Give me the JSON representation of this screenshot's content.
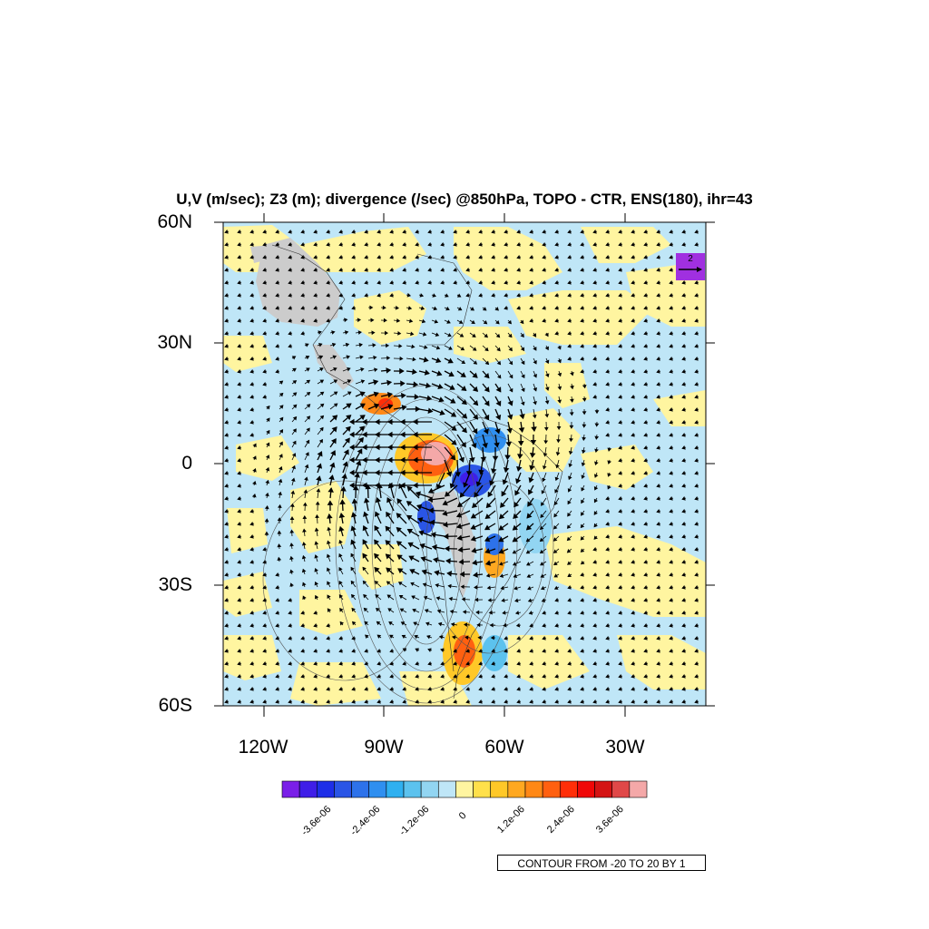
{
  "title": "U,V (m/sec); Z3 (m); divergence (/sec) @850hPa, TOPO - CTR, ENS(180), ihr=43",
  "lat_labels": [
    "60N",
    "30N",
    "0",
    "30S",
    "60S"
  ],
  "lon_labels": [
    "120W",
    "90W",
    "60W",
    "30W"
  ],
  "colorbar": {
    "labels": [
      "-3.6e-06",
      "-2.4e-06",
      "-1.2e-06",
      "0",
      "1.2e-06",
      "2.4e-06",
      "3.6e-06"
    ],
    "colors": [
      "#7a1fe8",
      "#3f1ee8",
      "#1e2ee8",
      "#2a55e6",
      "#2d72ea",
      "#2f8ff0",
      "#2fb0f0",
      "#5cc2ee",
      "#92d5f2",
      "#bfe6f7",
      "#fff5a0",
      "#ffe04a",
      "#ffc828",
      "#ffa820",
      "#ff8816",
      "#ff6010",
      "#ff2e08",
      "#f00808",
      "#d41414",
      "#e04848",
      "#f4a8a8"
    ]
  },
  "contour_note": "CONTOUR FROM -20 TO 20 BY 1",
  "reference_vector": {
    "label": "2"
  },
  "map": {
    "lon_range": [
      -130,
      5
    ],
    "lat_range": [
      -60,
      60
    ],
    "ocean_color": "#bfe6f7",
    "land_mask_color": "#cccccc"
  }
}
